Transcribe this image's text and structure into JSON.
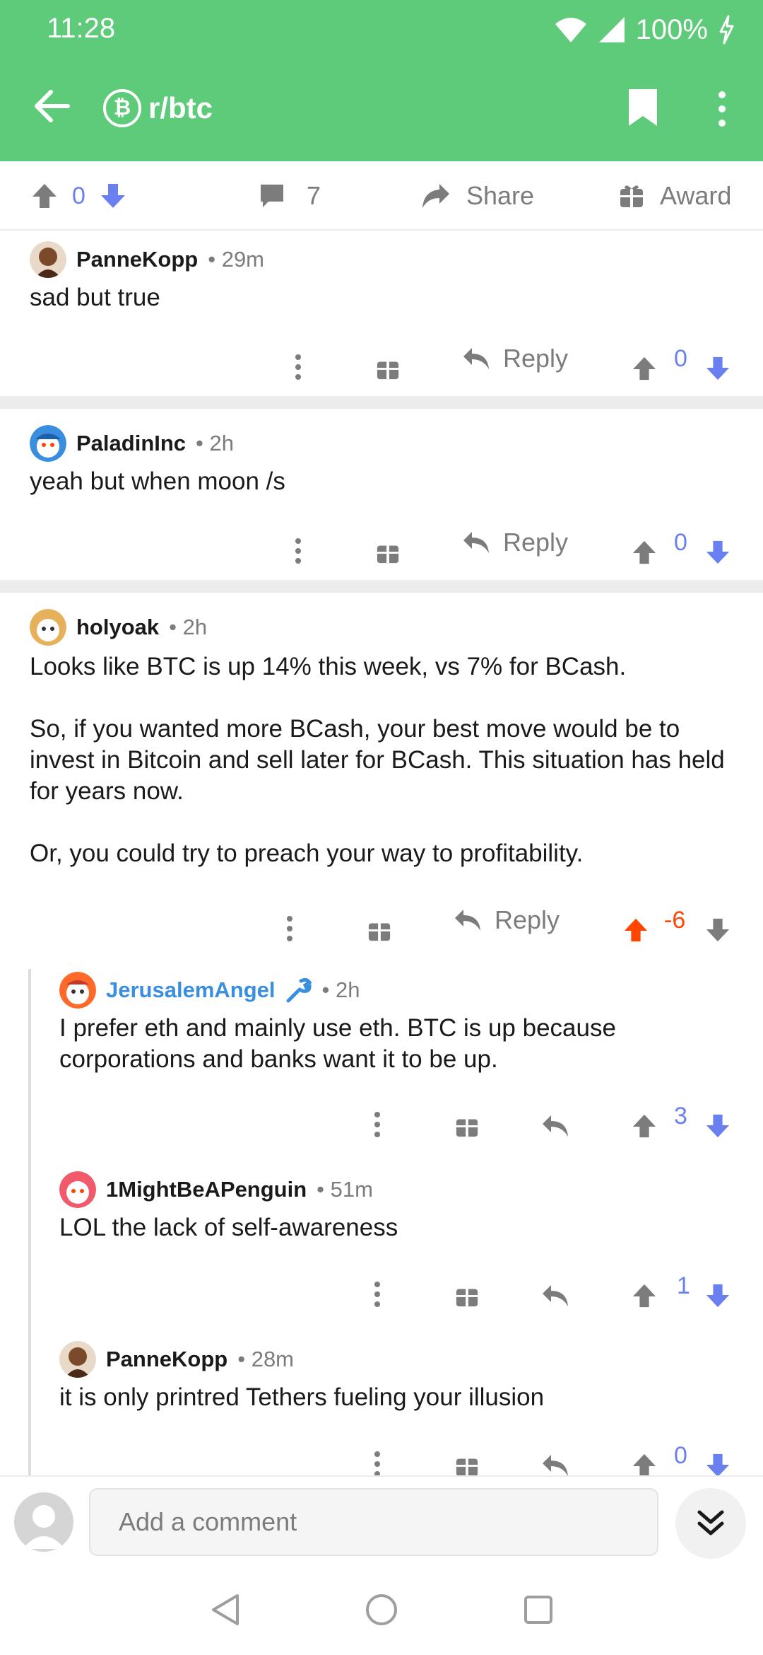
{
  "status_bar": {
    "time": "11:28",
    "battery": "100%"
  },
  "app_bar": {
    "subreddit": "r/btc",
    "sub_icon": "bitcoin-icon"
  },
  "action_row": {
    "score": "0",
    "comments": "7",
    "share_label": "Share",
    "award_label": "Award"
  },
  "comments": [
    {
      "author": "PanneKopp",
      "time": "29m",
      "body": "sad but true",
      "reply_label": "Reply",
      "score": "0"
    },
    {
      "author": "PaladinInc",
      "time": "2h",
      "body": "yeah but when moon /s",
      "reply_label": "Reply",
      "score": "0"
    },
    {
      "author": "holyoak",
      "time": "2h",
      "body": "Looks like BTC is up 14% this week, vs 7% for BCash.\n\nSo, if you wanted more BCash, your best move would be to invest in Bitcoin and sell later for BCash.  This situation has held for years now.\n\nOr, you could try to preach your way to profitability.",
      "reply_label": "Reply",
      "score": "-6"
    },
    {
      "author": "JerusalemAngel",
      "time": "2h",
      "body": "I prefer eth and mainly use eth. BTC is up because corporations and banks want it to be up.",
      "score": "3"
    },
    {
      "author": "1MightBeAPenguin",
      "time": "51m",
      "body": "LOL the lack of self-awareness",
      "score": "1"
    },
    {
      "author": "PanneKopp",
      "time": "28m",
      "body": "it is only printred Tethers fueling your illusion",
      "score": "0"
    }
  ],
  "bottom_bar": {
    "comment_placeholder": "Add a comment"
  },
  "colors": {
    "header": "#5dcb79",
    "upvote_active": "#ff4500",
    "downvote": "#6a7ff0",
    "link_blue": "#3a8ee0"
  }
}
